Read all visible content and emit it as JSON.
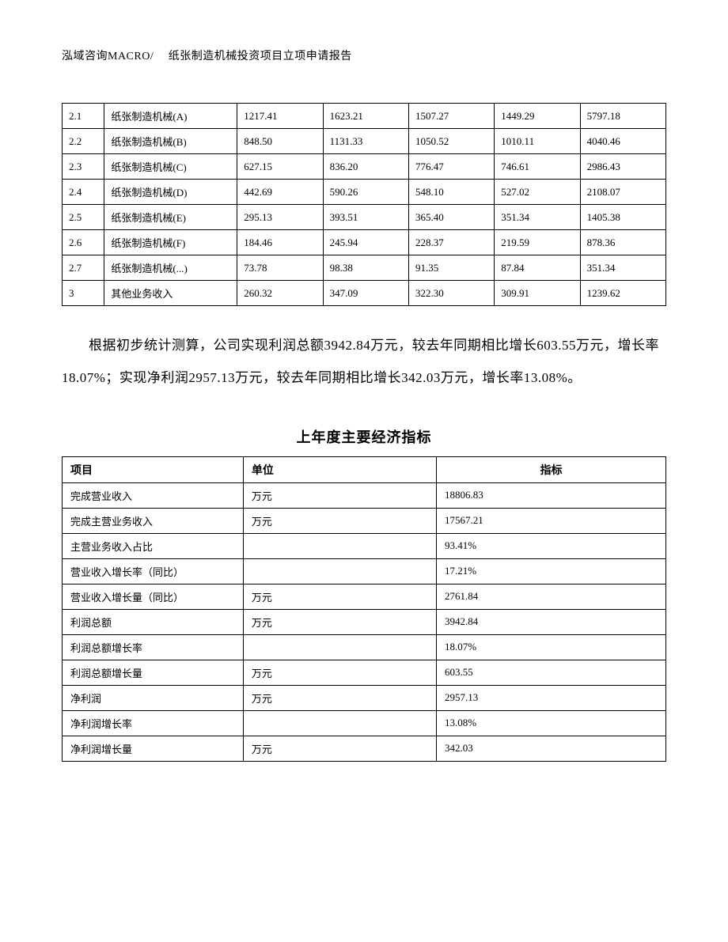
{
  "header": "泓域咨询MACRO/　 纸张制造机械投资项目立项申请报告",
  "table1": {
    "rows": [
      [
        "2.1",
        "纸张制造机械(A)",
        "1217.41",
        "1623.21",
        "1507.27",
        "1449.29",
        "5797.18"
      ],
      [
        "2.2",
        "纸张制造机械(B)",
        "848.50",
        "1131.33",
        "1050.52",
        "1010.11",
        "4040.46"
      ],
      [
        "2.3",
        "纸张制造机械(C)",
        "627.15",
        "836.20",
        "776.47",
        "746.61",
        "2986.43"
      ],
      [
        "2.4",
        "纸张制造机械(D)",
        "442.69",
        "590.26",
        "548.10",
        "527.02",
        "2108.07"
      ],
      [
        "2.5",
        "纸张制造机械(E)",
        "295.13",
        "393.51",
        "365.40",
        "351.34",
        "1405.38"
      ],
      [
        "2.6",
        "纸张制造机械(F)",
        "184.46",
        "245.94",
        "228.37",
        "219.59",
        "878.36"
      ],
      [
        "2.7",
        "纸张制造机械(...)",
        "73.78",
        "98.38",
        "91.35",
        "87.84",
        "351.34"
      ],
      [
        "3",
        "其他业务收入",
        "260.32",
        "347.09",
        "322.30",
        "309.91",
        "1239.62"
      ]
    ]
  },
  "bodyText": "根据初步统计测算，公司实现利润总额3942.84万元，较去年同期相比增长603.55万元，增长率18.07%；实现净利润2957.13万元，较去年同期相比增长342.03万元，增长率13.08%。",
  "table2Title": "上年度主要经济指标",
  "table2": {
    "headers": [
      "项目",
      "单位",
      "指标"
    ],
    "rows": [
      [
        "完成营业收入",
        "万元",
        "18806.83"
      ],
      [
        "完成主营业务收入",
        "万元",
        "17567.21"
      ],
      [
        "主营业务收入占比",
        "",
        "93.41%"
      ],
      [
        "营业收入增长率（同比）",
        "",
        "17.21%"
      ],
      [
        "营业收入增长量（同比）",
        "万元",
        "2761.84"
      ],
      [
        "利润总额",
        "万元",
        "3942.84"
      ],
      [
        "利润总额增长率",
        "",
        "18.07%"
      ],
      [
        "利润总额增长量",
        "万元",
        "603.55"
      ],
      [
        "净利润",
        "万元",
        "2957.13"
      ],
      [
        "净利润增长率",
        "",
        "13.08%"
      ],
      [
        "净利润增长量",
        "万元",
        "342.03"
      ]
    ]
  }
}
